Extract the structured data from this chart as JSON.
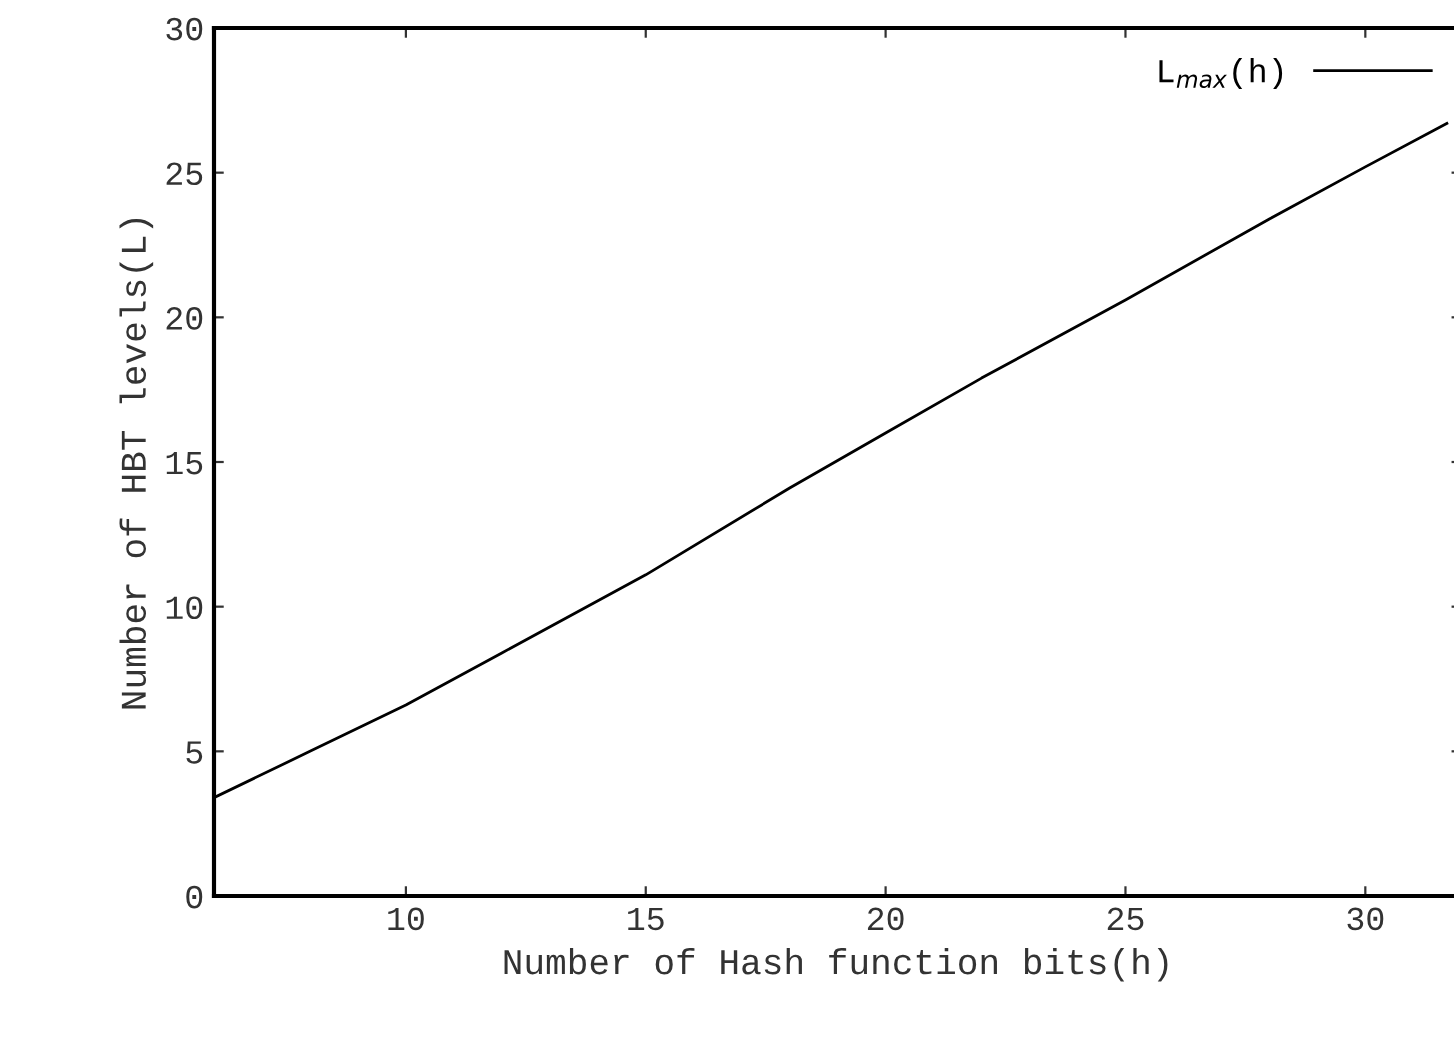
{
  "chart_data": {
    "type": "line",
    "xlabel": "Number of Hash function bits(h)",
    "ylabel": "Number of HBT levels(L)",
    "x": [
      6,
      8,
      10,
      12,
      15,
      18,
      20,
      22,
      25,
      28,
      30,
      31.7
    ],
    "series": [
      {
        "name": "L$_{max}$(h)",
        "color": "#000000",
        "values": [
          3.4,
          5.0,
          6.6,
          8.4,
          11.1,
          14.1,
          16.0,
          17.9,
          20.6,
          23.4,
          25.2,
          26.7
        ]
      }
    ],
    "xlim": [
      6,
      32
    ],
    "ylim": [
      0,
      30
    ],
    "xticks": [
      10,
      15,
      20,
      25,
      30
    ],
    "yticks": [
      0,
      5,
      10,
      15,
      20,
      25,
      30
    ],
    "grid": false,
    "legend": "top right",
    "line_style": "solid",
    "marker": "none"
  }
}
